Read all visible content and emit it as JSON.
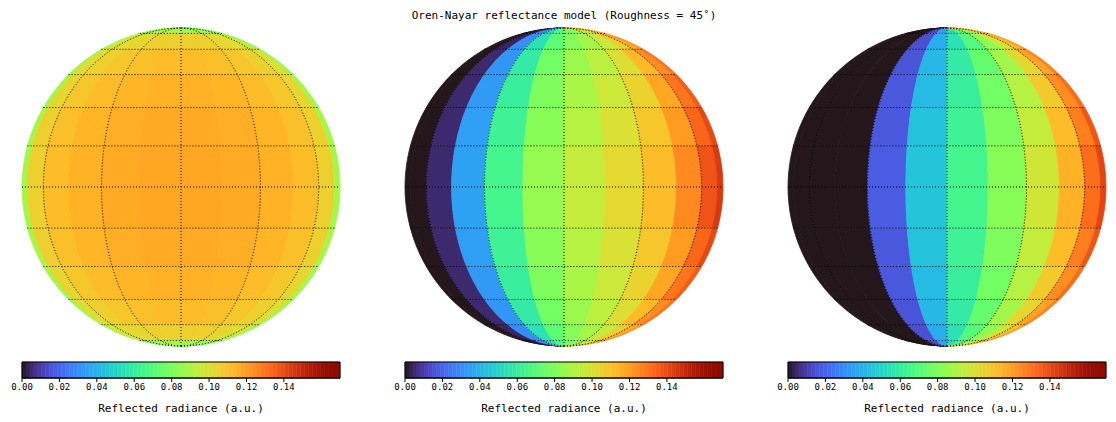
{
  "title": "Oren-Nayar reflectance model (Roughness = 45˚)",
  "chart_data": [
    {
      "type": "heatmap",
      "lon_edges": [
        -90,
        -75,
        -60,
        -45,
        -30,
        -15,
        0,
        15,
        30,
        45,
        60,
        75,
        90
      ],
      "lat_edges": [
        90,
        75,
        60,
        45,
        30,
        15,
        0,
        -15,
        -30,
        -45,
        -60,
        -75,
        -90
      ],
      "meridians": [
        -60,
        -30,
        0,
        30,
        60
      ],
      "parallels": [
        -75,
        -60,
        -45,
        -30,
        -15,
        0,
        15,
        30,
        45,
        60,
        75
      ],
      "cells": [
        [
          0.08,
          0.084,
          0.086,
          0.087,
          0.088,
          0.088,
          0.088,
          0.088,
          0.087,
          0.086,
          0.084,
          0.08
        ],
        [
          0.084,
          0.098,
          0.102,
          0.104,
          0.106,
          0.106,
          0.106,
          0.106,
          0.104,
          0.102,
          0.098,
          0.084
        ],
        [
          0.086,
          0.102,
          0.106,
          0.109,
          0.111,
          0.112,
          0.112,
          0.111,
          0.109,
          0.106,
          0.102,
          0.086
        ],
        [
          0.087,
          0.104,
          0.109,
          0.112,
          0.114,
          0.115,
          0.115,
          0.114,
          0.112,
          0.109,
          0.104,
          0.087
        ],
        [
          0.088,
          0.106,
          0.111,
          0.114,
          0.116,
          0.117,
          0.117,
          0.116,
          0.114,
          0.111,
          0.106,
          0.088
        ],
        [
          0.088,
          0.106,
          0.112,
          0.115,
          0.117,
          0.118,
          0.118,
          0.117,
          0.115,
          0.112,
          0.106,
          0.088
        ],
        [
          0.088,
          0.106,
          0.112,
          0.115,
          0.117,
          0.118,
          0.118,
          0.117,
          0.115,
          0.112,
          0.106,
          0.088
        ],
        [
          0.088,
          0.106,
          0.111,
          0.114,
          0.116,
          0.117,
          0.117,
          0.116,
          0.114,
          0.111,
          0.106,
          0.088
        ],
        [
          0.087,
          0.104,
          0.109,
          0.112,
          0.114,
          0.115,
          0.115,
          0.114,
          0.112,
          0.109,
          0.104,
          0.087
        ],
        [
          0.086,
          0.102,
          0.106,
          0.109,
          0.111,
          0.112,
          0.112,
          0.111,
          0.109,
          0.106,
          0.102,
          0.086
        ],
        [
          0.084,
          0.098,
          0.102,
          0.104,
          0.106,
          0.106,
          0.106,
          0.106,
          0.104,
          0.102,
          0.098,
          0.084
        ],
        [
          0.08,
          0.084,
          0.086,
          0.087,
          0.088,
          0.088,
          0.088,
          0.088,
          0.087,
          0.086,
          0.084,
          0.08
        ]
      ],
      "colorbar": {
        "range": [
          0,
          0.17
        ],
        "ticks": [
          {
            "value": 0,
            "label": "0.00"
          },
          0.02,
          0.04,
          0.06,
          0.08,
          {
            "value": 0.1,
            "label": "0.10"
          },
          0.12,
          0.14
        ],
        "label": "Reflected radiance (a.u.)"
      }
    },
    {
      "type": "heatmap",
      "lon_edges": [
        -90,
        -75,
        -60,
        -45,
        -30,
        -15,
        0,
        15,
        30,
        45,
        60,
        75,
        90
      ],
      "lat_edges": [
        90,
        75,
        60,
        45,
        30,
        15,
        0,
        -15,
        -30,
        -45,
        -60,
        -75,
        -90
      ],
      "meridians": [
        -60,
        -30,
        0,
        30,
        60
      ],
      "parallels": [
        -75,
        -60,
        -45,
        -30,
        -15,
        0,
        15,
        30,
        45,
        60,
        75
      ],
      "cells": [
        [
          0,
          0,
          0.004,
          0.028,
          0.052,
          0.068,
          0.076,
          0.082,
          0.09,
          0.1,
          0.11,
          0.116
        ],
        [
          0,
          0,
          0.004,
          0.03,
          0.055,
          0.072,
          0.081,
          0.088,
          0.095,
          0.106,
          0.117,
          0.123
        ],
        [
          0,
          0,
          0.005,
          0.032,
          0.059,
          0.077,
          0.086,
          0.093,
          0.101,
          0.113,
          0.124,
          0.131
        ],
        [
          0,
          0,
          0.005,
          0.033,
          0.061,
          0.08,
          0.089,
          0.097,
          0.105,
          0.118,
          0.13,
          0.136
        ],
        [
          0,
          0,
          0.005,
          0.034,
          0.063,
          0.082,
          0.092,
          0.1,
          0.109,
          0.121,
          0.134,
          0.141
        ],
        [
          0,
          0,
          0.005,
          0.035,
          0.065,
          0.085,
          0.095,
          0.103,
          0.112,
          0.125,
          0.138,
          0.145
        ],
        [
          0,
          0,
          0.005,
          0.035,
          0.065,
          0.085,
          0.095,
          0.103,
          0.112,
          0.125,
          0.138,
          0.145
        ],
        [
          0,
          0,
          0.005,
          0.034,
          0.063,
          0.082,
          0.092,
          0.1,
          0.109,
          0.121,
          0.134,
          0.141
        ],
        [
          0,
          0,
          0.005,
          0.033,
          0.061,
          0.08,
          0.089,
          0.097,
          0.105,
          0.118,
          0.13,
          0.136
        ],
        [
          0,
          0,
          0.005,
          0.032,
          0.059,
          0.077,
          0.086,
          0.093,
          0.101,
          0.113,
          0.124,
          0.131
        ],
        [
          0,
          0,
          0.004,
          0.03,
          0.055,
          0.072,
          0.081,
          0.088,
          0.095,
          0.106,
          0.117,
          0.123
        ],
        [
          0,
          0,
          0.004,
          0.028,
          0.052,
          0.068,
          0.076,
          0.082,
          0.09,
          0.1,
          0.11,
          0.116
        ]
      ],
      "colorbar": {
        "range": [
          0,
          0.17
        ],
        "ticks": [
          {
            "value": 0,
            "label": "0.00"
          },
          0.02,
          0.04,
          0.06,
          0.08,
          {
            "value": 0.1,
            "label": "0.10"
          },
          0.12,
          0.14
        ],
        "label": "Reflected radiance (a.u.)"
      }
    },
    {
      "type": "heatmap",
      "lon_edges": [
        -90,
        -75,
        -60,
        -45,
        -30,
        -15,
        0,
        15,
        30,
        45,
        60,
        75,
        90
      ],
      "lat_edges": [
        90,
        75,
        60,
        45,
        30,
        15,
        0,
        -15,
        -30,
        -45,
        -60,
        -75,
        -90
      ],
      "meridians": [
        -60,
        -30,
        0,
        30,
        60
      ],
      "parallels": [
        -75,
        -60,
        -45,
        -30,
        -15,
        0,
        15,
        30,
        45,
        60,
        75
      ],
      "cells": [
        [
          0,
          0,
          0,
          0,
          0.014,
          0.036,
          0.052,
          0.066,
          0.078,
          0.092,
          0.106,
          0.114
        ],
        [
          0,
          0,
          0,
          0,
          0.015,
          0.038,
          0.055,
          0.07,
          0.083,
          0.098,
          0.112,
          0.121
        ],
        [
          0,
          0,
          0,
          0,
          0.016,
          0.041,
          0.059,
          0.074,
          0.088,
          0.104,
          0.119,
          0.128
        ],
        [
          0,
          0,
          0,
          0,
          0.017,
          0.042,
          0.061,
          0.077,
          0.092,
          0.108,
          0.124,
          0.133
        ],
        [
          0,
          0,
          0,
          0,
          0.017,
          0.044,
          0.063,
          0.08,
          0.095,
          0.112,
          0.128,
          0.138
        ],
        [
          0,
          0,
          0,
          0,
          0.018,
          0.045,
          0.065,
          0.082,
          0.098,
          0.115,
          0.132,
          0.142
        ],
        [
          0,
          0,
          0,
          0,
          0.018,
          0.045,
          0.065,
          0.082,
          0.098,
          0.115,
          0.132,
          0.142
        ],
        [
          0,
          0,
          0,
          0,
          0.017,
          0.044,
          0.063,
          0.08,
          0.095,
          0.112,
          0.128,
          0.138
        ],
        [
          0,
          0,
          0,
          0,
          0.017,
          0.042,
          0.061,
          0.077,
          0.092,
          0.108,
          0.124,
          0.133
        ],
        [
          0,
          0,
          0,
          0,
          0.016,
          0.041,
          0.059,
          0.074,
          0.088,
          0.104,
          0.119,
          0.128
        ],
        [
          0,
          0,
          0,
          0,
          0.015,
          0.038,
          0.055,
          0.07,
          0.083,
          0.098,
          0.112,
          0.121
        ],
        [
          0,
          0,
          0,
          0,
          0.014,
          0.036,
          0.052,
          0.066,
          0.078,
          0.092,
          0.106,
          0.114
        ]
      ],
      "colorbar": {
        "range": [
          0,
          0.17
        ],
        "ticks": [
          {
            "value": 0,
            "label": "0.00"
          },
          0.02,
          0.04,
          0.06,
          0.08,
          {
            "value": 0.1,
            "label": "0.10"
          },
          0.12,
          0.14
        ],
        "label": "Reflected radiance (a.u.)"
      }
    }
  ]
}
